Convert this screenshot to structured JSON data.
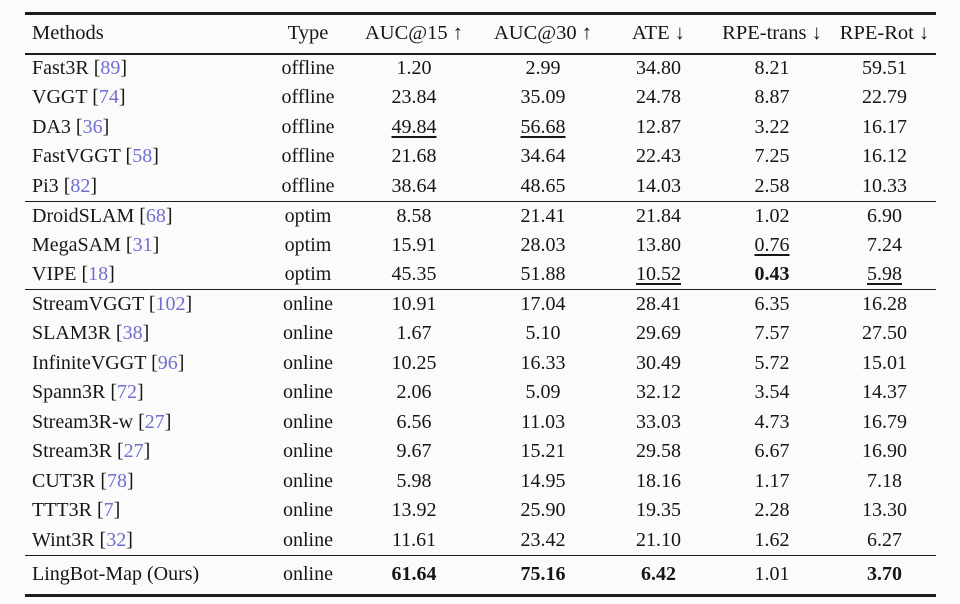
{
  "page": {
    "background": "#fbfbfb",
    "text_color": "#161616",
    "rule_color": "#1c1c1c",
    "citation_color": "#6f6fd0"
  },
  "table": {
    "columns": [
      "Methods",
      "Type",
      "AUC@15 ↑",
      "AUC@30 ↑",
      "ATE ↓",
      "RPE-trans ↓",
      "RPE-Rot ↓"
    ],
    "citation_brackets": [
      "[",
      "]"
    ],
    "groups": [
      {
        "name": "offline",
        "rows": [
          {
            "method": "Fast3R",
            "citation": "89",
            "type": "offline",
            "values": [
              "1.20",
              "2.99",
              "34.80",
              "8.21",
              "59.51"
            ],
            "emphasis": [
              null,
              null,
              null,
              null,
              null
            ]
          },
          {
            "method": "VGGT",
            "citation": "74",
            "type": "offline",
            "values": [
              "23.84",
              "35.09",
              "24.78",
              "8.87",
              "22.79"
            ],
            "emphasis": [
              null,
              null,
              null,
              null,
              null
            ]
          },
          {
            "method": "DA3",
            "citation": "36",
            "type": "offline",
            "values": [
              "49.84",
              "56.68",
              "12.87",
              "3.22",
              "16.17"
            ],
            "emphasis": [
              "underline",
              "underline",
              null,
              null,
              null
            ]
          },
          {
            "method": "FastVGGT",
            "citation": "58",
            "type": "offline",
            "values": [
              "21.68",
              "34.64",
              "22.43",
              "7.25",
              "16.12"
            ],
            "emphasis": [
              null,
              null,
              null,
              null,
              null
            ]
          },
          {
            "method": "Pi3",
            "citation": "82",
            "type": "offline",
            "values": [
              "38.64",
              "48.65",
              "14.03",
              "2.58",
              "10.33"
            ],
            "emphasis": [
              null,
              null,
              null,
              null,
              null
            ]
          }
        ]
      },
      {
        "name": "optim",
        "rows": [
          {
            "method": "DroidSLAM",
            "citation": "68",
            "type": "optim",
            "values": [
              "8.58",
              "21.41",
              "21.84",
              "1.02",
              "6.90"
            ],
            "emphasis": [
              null,
              null,
              null,
              null,
              null
            ]
          },
          {
            "method": "MegaSAM",
            "citation": "31",
            "type": "optim",
            "values": [
              "15.91",
              "28.03",
              "13.80",
              "0.76",
              "7.24"
            ],
            "emphasis": [
              null,
              null,
              null,
              "underline",
              null
            ]
          },
          {
            "method": "VIPE",
            "citation": "18",
            "type": "optim",
            "values": [
              "45.35",
              "51.88",
              "10.52",
              "0.43",
              "5.98"
            ],
            "emphasis": [
              null,
              null,
              "underline",
              "bold",
              "underline"
            ]
          }
        ]
      },
      {
        "name": "online",
        "rows": [
          {
            "method": "StreamVGGT",
            "citation": "102",
            "type": "online",
            "values": [
              "10.91",
              "17.04",
              "28.41",
              "6.35",
              "16.28"
            ],
            "emphasis": [
              null,
              null,
              null,
              null,
              null
            ]
          },
          {
            "method": "SLAM3R",
            "citation": "38",
            "type": "online",
            "values": [
              "1.67",
              "5.10",
              "29.69",
              "7.57",
              "27.50"
            ],
            "emphasis": [
              null,
              null,
              null,
              null,
              null
            ]
          },
          {
            "method": "InfiniteVGGT",
            "citation": "96",
            "type": "online",
            "values": [
              "10.25",
              "16.33",
              "30.49",
              "5.72",
              "15.01"
            ],
            "emphasis": [
              null,
              null,
              null,
              null,
              null
            ]
          },
          {
            "method": "Spann3R",
            "citation": "72",
            "type": "online",
            "values": [
              "2.06",
              "5.09",
              "32.12",
              "3.54",
              "14.37"
            ],
            "emphasis": [
              null,
              null,
              null,
              null,
              null
            ]
          },
          {
            "method": "Stream3R-w",
            "citation": "27",
            "type": "online",
            "values": [
              "6.56",
              "11.03",
              "33.03",
              "4.73",
              "16.79"
            ],
            "emphasis": [
              null,
              null,
              null,
              null,
              null
            ]
          },
          {
            "method": "Stream3R",
            "citation": "27",
            "type": "online",
            "values": [
              "9.67",
              "15.21",
              "29.58",
              "6.67",
              "16.90"
            ],
            "emphasis": [
              null,
              null,
              null,
              null,
              null
            ]
          },
          {
            "method": "CUT3R",
            "citation": "78",
            "type": "online",
            "values": [
              "5.98",
              "14.95",
              "18.16",
              "1.17",
              "7.18"
            ],
            "emphasis": [
              null,
              null,
              null,
              null,
              null
            ]
          },
          {
            "method": "TTT3R",
            "citation": "7",
            "type": "online",
            "values": [
              "13.92",
              "25.90",
              "19.35",
              "2.28",
              "13.30"
            ],
            "emphasis": [
              null,
              null,
              null,
              null,
              null
            ]
          },
          {
            "method": "Wint3R",
            "citation": "32",
            "type": "online",
            "values": [
              "11.61",
              "23.42",
              "21.10",
              "1.62",
              "6.27"
            ],
            "emphasis": [
              null,
              null,
              null,
              null,
              null
            ]
          }
        ]
      },
      {
        "name": "ours",
        "rows": [
          {
            "method": "LingBot-Map (Ours)",
            "citation": null,
            "type": "online",
            "values": [
              "61.64",
              "75.16",
              "6.42",
              "1.01",
              "3.70"
            ],
            "emphasis": [
              "bold",
              "bold",
              "bold",
              null,
              "bold"
            ]
          }
        ]
      }
    ]
  }
}
